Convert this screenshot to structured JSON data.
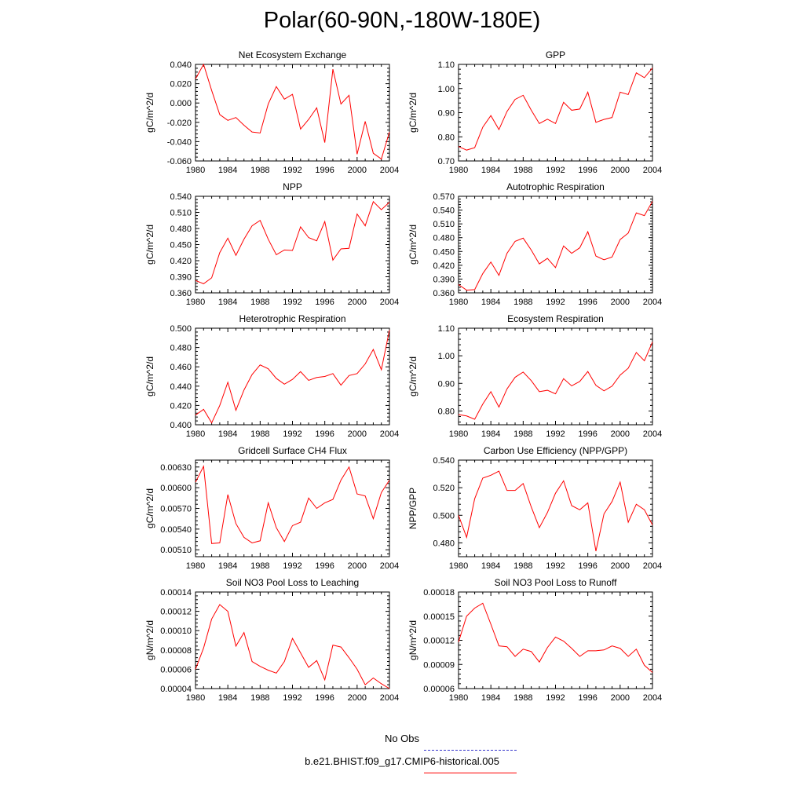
{
  "title": "Polar(60-90N,-180W-180E)",
  "legend": {
    "obs_label": "No Obs",
    "obs_color": "#3333cc",
    "case_label": "b.e21.BHIST.f09_g17.CMIP6-historical.005",
    "case_color": "#ff0000"
  },
  "chart_data": [
    {
      "type": "line",
      "title": "Net Ecosystem Exchange",
      "ylabel": "gC/m^2/d",
      "xlabel": "",
      "xlim": [
        1980,
        2004
      ],
      "ylim": [
        -0.06,
        0.04
      ],
      "xticks": [
        "1980",
        "1984",
        "1988",
        "1992",
        "1996",
        "2000",
        "2004"
      ],
      "yticks": [
        "-0.060",
        "-0.040",
        "-0.020",
        "0.000",
        "0.020",
        "0.040"
      ],
      "grid": false,
      "series": [
        {
          "color": "#ff0000",
          "x": [
            1980,
            1981,
            1982,
            1983,
            1984,
            1985,
            1986,
            1987,
            1988,
            1989,
            1990,
            1991,
            1992,
            1993,
            1994,
            1995,
            1996,
            1997,
            1998,
            1999,
            2000,
            2001,
            2002,
            2003,
            2004
          ],
          "values": [
            0.025,
            0.04,
            0.013,
            -0.012,
            -0.018,
            -0.015,
            -0.023,
            -0.03,
            -0.031,
            -0.001,
            0.017,
            0.004,
            0.009,
            -0.027,
            -0.017,
            -0.005,
            -0.041,
            0.035,
            -0.001,
            0.008,
            -0.053,
            -0.019,
            -0.052,
            -0.058,
            -0.03
          ]
        }
      ]
    },
    {
      "type": "line",
      "title": "GPP",
      "ylabel": "gC/m^2/d",
      "xlabel": "",
      "xlim": [
        1980,
        2004
      ],
      "ylim": [
        0.7,
        1.1
      ],
      "xticks": [
        "1980",
        "1984",
        "1988",
        "1992",
        "1996",
        "2000",
        "2004"
      ],
      "yticks": [
        "0.70",
        "0.80",
        "0.90",
        "1.00",
        "1.10"
      ],
      "grid": false,
      "series": [
        {
          "color": "#ff0000",
          "x": [
            1980,
            1981,
            1982,
            1983,
            1984,
            1985,
            1986,
            1987,
            1988,
            1989,
            1990,
            1991,
            1992,
            1993,
            1994,
            1995,
            1996,
            1997,
            1998,
            1999,
            2000,
            2001,
            2002,
            2003,
            2004
          ],
          "values": [
            0.76,
            0.745,
            0.755,
            0.84,
            0.888,
            0.83,
            0.905,
            0.955,
            0.972,
            0.91,
            0.855,
            0.873,
            0.855,
            0.943,
            0.91,
            0.915,
            0.985,
            0.86,
            0.872,
            0.88,
            0.985,
            0.975,
            1.065,
            1.045,
            1.085
          ]
        }
      ]
    },
    {
      "type": "line",
      "title": "NPP",
      "ylabel": "gC/m^2/d",
      "xlabel": "",
      "xlim": [
        1980,
        2004
      ],
      "ylim": [
        0.36,
        0.54
      ],
      "xticks": [
        "1980",
        "1984",
        "1988",
        "1992",
        "1996",
        "2000",
        "2004"
      ],
      "yticks": [
        "0.360",
        "0.390",
        "0.420",
        "0.450",
        "0.480",
        "0.510",
        "0.540"
      ],
      "grid": false,
      "series": [
        {
          "color": "#ff0000",
          "x": [
            1980,
            1981,
            1982,
            1983,
            1984,
            1985,
            1986,
            1987,
            1988,
            1989,
            1990,
            1991,
            1992,
            1993,
            1994,
            1995,
            1996,
            1997,
            1998,
            1999,
            2000,
            2001,
            2002,
            2003,
            2004
          ],
          "values": [
            0.383,
            0.377,
            0.388,
            0.435,
            0.462,
            0.43,
            0.46,
            0.485,
            0.495,
            0.46,
            0.431,
            0.44,
            0.439,
            0.483,
            0.463,
            0.457,
            0.493,
            0.421,
            0.442,
            0.443,
            0.507,
            0.485,
            0.53,
            0.515,
            0.529
          ]
        }
      ]
    },
    {
      "type": "line",
      "title": "Autotrophic Respiration",
      "ylabel": "gC/m^2/d",
      "xlabel": "",
      "xlim": [
        1980,
        2004
      ],
      "ylim": [
        0.36,
        0.57
      ],
      "xticks": [
        "1980",
        "1984",
        "1988",
        "1992",
        "1996",
        "2000",
        "2004"
      ],
      "yticks": [
        "0.360",
        "0.390",
        "0.420",
        "0.450",
        "0.480",
        "0.510",
        "0.540",
        "0.570"
      ],
      "grid": false,
      "series": [
        {
          "color": "#ff0000",
          "x": [
            1980,
            1981,
            1982,
            1983,
            1984,
            1985,
            1986,
            1987,
            1988,
            1989,
            1990,
            1991,
            1992,
            1993,
            1994,
            1995,
            1996,
            1997,
            1998,
            1999,
            2000,
            2001,
            2002,
            2003,
            2004
          ],
          "values": [
            0.378,
            0.366,
            0.367,
            0.402,
            0.427,
            0.398,
            0.446,
            0.472,
            0.479,
            0.453,
            0.423,
            0.435,
            0.415,
            0.462,
            0.446,
            0.458,
            0.493,
            0.44,
            0.432,
            0.438,
            0.476,
            0.49,
            0.534,
            0.528,
            0.559
          ]
        }
      ]
    },
    {
      "type": "line",
      "title": "Heterotrophic Respiration",
      "ylabel": "gC/m^2/d",
      "xlabel": "",
      "xlim": [
        1980,
        2004
      ],
      "ylim": [
        0.4,
        0.5
      ],
      "xticks": [
        "1980",
        "1984",
        "1988",
        "1992",
        "1996",
        "2000",
        "2004"
      ],
      "yticks": [
        "0.400",
        "0.420",
        "0.440",
        "0.460",
        "0.480",
        "0.500"
      ],
      "grid": false,
      "series": [
        {
          "color": "#ff0000",
          "x": [
            1980,
            1981,
            1982,
            1983,
            1984,
            1985,
            1986,
            1987,
            1988,
            1989,
            1990,
            1991,
            1992,
            1993,
            1994,
            1995,
            1996,
            1997,
            1998,
            1999,
            2000,
            2001,
            2002,
            2003,
            2004
          ],
          "values": [
            0.41,
            0.416,
            0.402,
            0.42,
            0.444,
            0.415,
            0.436,
            0.452,
            0.462,
            0.458,
            0.448,
            0.442,
            0.447,
            0.455,
            0.446,
            0.449,
            0.45,
            0.453,
            0.441,
            0.451,
            0.453,
            0.463,
            0.478,
            0.457,
            0.498
          ]
        }
      ]
    },
    {
      "type": "line",
      "title": "Ecosystem Respiration",
      "ylabel": "gC/m^2/d",
      "xlabel": "",
      "xlim": [
        1980,
        2004
      ],
      "ylim": [
        0.75,
        1.1
      ],
      "xticks": [
        "1980",
        "1984",
        "1988",
        "1992",
        "1996",
        "2000",
        "2004"
      ],
      "yticks": [
        "0.80",
        "0.90",
        "1.00",
        "1.10"
      ],
      "grid": false,
      "series": [
        {
          "color": "#ff0000",
          "x": [
            1980,
            1981,
            1982,
            1983,
            1984,
            1985,
            1986,
            1987,
            1988,
            1989,
            1990,
            1991,
            1992,
            1993,
            1994,
            1995,
            1996,
            1997,
            1998,
            1999,
            2000,
            2001,
            2002,
            2003,
            2004
          ],
          "values": [
            0.787,
            0.782,
            0.77,
            0.825,
            0.87,
            0.814,
            0.88,
            0.922,
            0.941,
            0.91,
            0.87,
            0.875,
            0.862,
            0.917,
            0.891,
            0.907,
            0.943,
            0.893,
            0.873,
            0.89,
            0.93,
            0.955,
            1.012,
            0.982,
            1.05
          ]
        }
      ]
    },
    {
      "type": "line",
      "title": "Gridcell Surface CH4 Flux",
      "ylabel": "gC/m^2/d",
      "xlabel": "",
      "xlim": [
        1980,
        2004
      ],
      "ylim": [
        0.005,
        0.0064
      ],
      "xticks": [
        "1980",
        "1984",
        "1988",
        "1992",
        "1996",
        "2000",
        "2004"
      ],
      "yticks": [
        "0.00510",
        "0.00540",
        "0.00570",
        "0.00600",
        "0.00630"
      ],
      "grid": false,
      "series": [
        {
          "color": "#ff0000",
          "x": [
            1980,
            1981,
            1982,
            1983,
            1984,
            1985,
            1986,
            1987,
            1988,
            1989,
            1990,
            1991,
            1992,
            1993,
            1994,
            1995,
            1996,
            1997,
            1998,
            1999,
            2000,
            2001,
            2002,
            2003,
            2004
          ],
          "values": [
            0.00608,
            0.00631,
            0.00519,
            0.0052,
            0.0059,
            0.00548,
            0.00528,
            0.0052,
            0.00523,
            0.00578,
            0.00542,
            0.00522,
            0.00545,
            0.0055,
            0.00585,
            0.0057,
            0.00578,
            0.00583,
            0.00611,
            0.0063,
            0.00591,
            0.00588,
            0.00555,
            0.00593,
            0.00611
          ]
        }
      ]
    },
    {
      "type": "line",
      "title": "Carbon Use Efficiency (NPP/GPP)",
      "ylabel": "NPP/GPP",
      "xlabel": "",
      "xlim": [
        1980,
        2004
      ],
      "ylim": [
        0.47,
        0.54
      ],
      "xticks": [
        "1980",
        "1984",
        "1988",
        "1992",
        "1996",
        "2000",
        "2004"
      ],
      "yticks": [
        "0.480",
        "0.500",
        "0.520",
        "0.540"
      ],
      "grid": false,
      "series": [
        {
          "color": "#ff0000",
          "x": [
            1980,
            1981,
            1982,
            1983,
            1984,
            1985,
            1986,
            1987,
            1988,
            1989,
            1990,
            1991,
            1992,
            1993,
            1994,
            1995,
            1996,
            1997,
            1998,
            1999,
            2000,
            2001,
            2002,
            2003,
            2004
          ],
          "values": [
            0.5,
            0.484,
            0.512,
            0.527,
            0.529,
            0.532,
            0.518,
            0.518,
            0.523,
            0.506,
            0.491,
            0.502,
            0.516,
            0.525,
            0.507,
            0.504,
            0.509,
            0.474,
            0.501,
            0.51,
            0.524,
            0.495,
            0.508,
            0.504,
            0.493
          ]
        }
      ]
    },
    {
      "type": "line",
      "title": "Soil NO3 Pool Loss to Leaching",
      "ylabel": "gN/m^2/d",
      "xlabel": "",
      "xlim": [
        1980,
        2004
      ],
      "ylim": [
        4e-05,
        0.00014
      ],
      "xticks": [
        "1980",
        "1984",
        "1988",
        "1992",
        "1996",
        "2000",
        "2004"
      ],
      "yticks": [
        "0.00004",
        "0.00006",
        "0.00008",
        "0.00010",
        "0.00012",
        "0.00014"
      ],
      "grid": false,
      "series": [
        {
          "color": "#ff0000",
          "x": [
            1980,
            1981,
            1982,
            1983,
            1984,
            1985,
            1986,
            1987,
            1988,
            1989,
            1990,
            1991,
            1992,
            1993,
            1994,
            1995,
            1996,
            1997,
            1998,
            1999,
            2000,
            2001,
            2002,
            2003,
            2004
          ],
          "values": [
            6e-05,
            8.2e-05,
            0.000112,
            0.000127,
            0.00012,
            8.4e-05,
            9.8e-05,
            6.8e-05,
            6.3e-05,
            5.9e-05,
            5.6e-05,
            6.8e-05,
            9.2e-05,
            7.7e-05,
            6.2e-05,
            6.9e-05,
            4.9e-05,
            8.5e-05,
            8.3e-05,
            7.2e-05,
            6e-05,
            4.4e-05,
            5.1e-05,
            4.5e-05,
            4e-05
          ]
        }
      ]
    },
    {
      "type": "line",
      "title": "Soil NO3 Pool Loss to Runoff",
      "ylabel": "gN/m^2/d",
      "xlabel": "",
      "xlim": [
        1980,
        2004
      ],
      "ylim": [
        6e-05,
        0.00018
      ],
      "xticks": [
        "1980",
        "1984",
        "1988",
        "1992",
        "1996",
        "2000",
        "2004"
      ],
      "yticks": [
        "0.00006",
        "0.00009",
        "0.00012",
        "0.00015",
        "0.00018"
      ],
      "grid": false,
      "series": [
        {
          "color": "#ff0000",
          "x": [
            1980,
            1981,
            1982,
            1983,
            1984,
            1985,
            1986,
            1987,
            1988,
            1989,
            1990,
            1991,
            1992,
            1993,
            1994,
            1995,
            1996,
            1997,
            1998,
            1999,
            2000,
            2001,
            2002,
            2003,
            2004
          ],
          "values": [
            0.000118,
            0.00015,
            0.00016,
            0.000166,
            0.00014,
            0.000113,
            0.000112,
            0.0001,
            0.000109,
            0.000106,
            9.3e-05,
            0.000111,
            0.000124,
            0.000119,
            0.00011,
            0.0001,
            0.000107,
            0.000107,
            0.000108,
            0.000113,
            0.00011,
            0.0001,
            0.000109,
            8.9e-05,
            8e-05
          ]
        }
      ]
    }
  ]
}
